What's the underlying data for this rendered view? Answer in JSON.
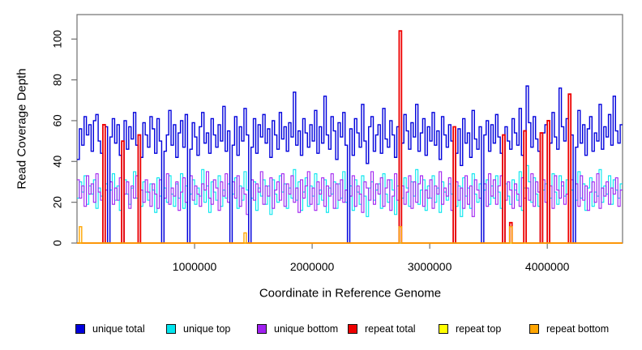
{
  "chart_data": {
    "type": "line",
    "line_style": "step",
    "title": "",
    "xlabel": "Coordinate in Reference Genome",
    "ylabel": "Read Coverage Depth",
    "xlim": [
      0,
      4640000
    ],
    "ylim": [
      0,
      112
    ],
    "grid": false,
    "legend_position": "bottom",
    "x_ticks": [
      {
        "value": 1000000,
        "label": "1000000"
      },
      {
        "value": 2000000,
        "label": "2000000"
      },
      {
        "value": 3000000,
        "label": "3000000"
      },
      {
        "value": 4000000,
        "label": "4000000"
      }
    ],
    "y_ticks": [
      {
        "value": 0,
        "label": "0"
      },
      {
        "value": 20,
        "label": "20"
      },
      {
        "value": 40,
        "label": "40"
      },
      {
        "value": 60,
        "label": "60"
      },
      {
        "value": 80,
        "label": "80"
      },
      {
        "value": 100,
        "label": "100"
      }
    ],
    "bin_size": 20000,
    "n_bins": 232,
    "axis_color": "#707070",
    "draw_order": [
      1,
      2,
      0,
      3,
      4,
      5
    ],
    "series": [
      {
        "name": "unique total",
        "color": "#0000DC",
        "kind": "full",
        "values": [
          41,
          56,
          48,
          62,
          53,
          58,
          45,
          60,
          63,
          50,
          44,
          0,
          57,
          0,
          52,
          61,
          49,
          58,
          43,
          0,
          60,
          46,
          57,
          51,
          64,
          48,
          0,
          42,
          59,
          53,
          47,
          62,
          56,
          44,
          61,
          50,
          0,
          45,
          53,
          65,
          48,
          58,
          42,
          54,
          60,
          47,
          63,
          0,
          46,
          59,
          52,
          43,
          57,
          64,
          49,
          54,
          44,
          61,
          53,
          47,
          58,
          50,
          67,
          45,
          55,
          0,
          48,
          62,
          43,
          57,
          50,
          66,
          53,
          0,
          47,
          61,
          44,
          58,
          52,
          63,
          49,
          56,
          42,
          60,
          53,
          46,
          64,
          51,
          57,
          45,
          59,
          52,
          74,
          48,
          55,
          43,
          61,
          54,
          47,
          58,
          50,
          65,
          44,
          57,
          49,
          72,
          53,
          46,
          62,
          55,
          41,
          59,
          52,
          64,
          48,
          0,
          56,
          43,
          61,
          54,
          47,
          68,
          50,
          39,
          57,
          62,
          45,
          53,
          58,
          44,
          66,
          51,
          47,
          60,
          53,
          42,
          57,
          0,
          49,
          63,
          55,
          46,
          59,
          52,
          68,
          45,
          54,
          61,
          43,
          57,
          50,
          64,
          48,
          55,
          41,
          62,
          53,
          47,
          58,
          50,
          0,
          44,
          56,
          38,
          61,
          49,
          54,
          42,
          65,
          51,
          46,
          57,
          0,
          53,
          60,
          45,
          58,
          49,
          63,
          52,
          44,
          0,
          57,
          50,
          46,
          61,
          54,
          48,
          66,
          43,
          55,
          77,
          59,
          47,
          62,
          51,
          45,
          0,
          54,
          58,
          0,
          49,
          64,
          52,
          46,
          76,
          57,
          50,
          61,
          0,
          53,
          0,
          47,
          65,
          49,
          58,
          43,
          56,
          62,
          45,
          54,
          50,
          68,
          46,
          57,
          52,
          63,
          48,
          72,
          55,
          49,
          58
        ]
      },
      {
        "name": "unique top",
        "color": "#00E5EE",
        "kind": "full",
        "values": [
          22,
          30,
          25,
          33,
          19,
          28,
          24,
          31,
          17,
          27,
          23,
          0,
          29,
          0,
          26,
          34,
          21,
          28,
          16,
          0,
          31,
          24,
          19,
          27,
          35,
          22,
          0,
          18,
          30,
          25,
          21,
          29,
          26,
          15,
          32,
          23,
          0,
          27,
          20,
          33,
          24,
          18,
          29,
          22,
          34,
          17,
          28,
          0,
          24,
          31,
          19,
          27,
          23,
          36,
          20,
          28,
          15,
          30,
          25,
          21,
          33,
          18,
          26,
          22,
          29,
          0,
          24,
          32,
          17,
          28,
          21,
          35,
          26,
          0,
          22,
          30,
          16,
          27,
          23,
          31,
          19,
          28,
          14,
          31,
          24,
          20,
          33,
          25,
          29,
          17,
          27,
          22,
          36,
          21,
          30,
          16,
          25,
          32,
          18,
          28,
          23,
          34,
          19,
          26,
          21,
          31,
          15,
          27,
          24,
          30,
          17,
          29,
          22,
          35,
          20,
          0,
          28,
          16,
          31,
          25,
          19,
          33,
          23,
          13,
          27,
          30,
          21,
          26,
          29,
          17,
          34,
          24,
          20,
          31,
          26,
          14,
          28,
          0,
          22,
          32,
          27,
          18,
          30,
          23,
          36,
          19,
          26,
          31,
          16,
          28,
          22,
          33,
          20,
          27,
          15,
          30,
          25,
          21,
          29,
          24,
          0,
          18,
          28,
          13,
          32,
          23,
          27,
          17,
          34,
          24,
          20,
          29,
          0,
          26,
          31,
          19,
          28,
          22,
          33,
          25,
          17,
          0,
          29,
          23,
          19,
          31,
          26,
          21,
          35,
          16,
          27,
          38,
          30,
          20,
          32,
          24,
          18,
          0,
          26,
          29,
          0,
          22,
          34,
          25,
          19,
          33,
          28,
          23,
          31,
          0,
          26,
          0,
          21,
          35,
          22,
          29,
          16,
          27,
          32,
          18,
          25,
          23,
          36,
          20,
          28,
          24,
          33,
          19,
          31,
          26,
          22,
          29
        ]
      },
      {
        "name": "unique bottom",
        "color": "#A020F0",
        "kind": "full",
        "values": [
          31,
          22,
          28,
          18,
          33,
          24,
          29,
          20,
          34,
          25,
          21,
          0,
          26,
          0,
          30,
          19,
          27,
          21,
          32,
          0,
          24,
          30,
          17,
          28,
          22,
          33,
          0,
          26,
          20,
          31,
          25,
          18,
          29,
          24,
          17,
          31,
          0,
          22,
          34,
          19,
          27,
          23,
          30,
          16,
          25,
          32,
          20,
          0,
          33,
          21,
          28,
          24,
          18,
          29,
          26,
          35,
          22,
          19,
          31,
          27,
          16,
          30,
          23,
          34,
          20,
          0,
          30,
          22,
          33,
          18,
          27,
          24,
          14,
          0,
          31,
          21,
          29,
          25,
          35,
          19,
          28,
          23,
          32,
          17,
          26,
          30,
          21,
          34,
          18,
          29,
          24,
          33,
          20,
          27,
          15,
          31,
          22,
          28,
          35,
          19,
          27,
          16,
          30,
          24,
          32,
          18,
          28,
          23,
          34,
          17,
          29,
          21,
          31,
          20,
          26,
          0,
          23,
          33,
          18,
          28,
          24,
          15,
          30,
          27,
          21,
          35,
          19,
          29,
          24,
          32,
          18,
          27,
          31,
          16,
          23,
          34,
          21,
          0,
          28,
          19,
          25,
          33,
          17,
          30,
          20,
          29,
          33,
          18,
          26,
          22,
          31,
          17,
          28,
          24,
          35,
          19,
          27,
          23,
          32,
          16,
          0,
          30,
          21,
          27,
          17,
          33,
          19,
          28,
          13,
          31,
          26,
          22,
          0,
          29,
          18,
          34,
          23,
          31,
          19,
          28,
          33,
          0,
          21,
          30,
          26,
          17,
          29,
          24,
          18,
          32,
          22,
          27,
          21,
          34,
          18,
          30,
          25,
          0,
          31,
          20,
          0,
          28,
          17,
          33,
          26,
          22,
          30,
          19,
          24,
          0,
          31,
          0,
          29,
          18,
          33,
          21,
          28,
          16,
          25,
          30,
          20,
          34,
          17,
          27,
          23,
          30,
          19,
          27,
          24,
          32,
          18,
          26
        ]
      },
      {
        "name": "repeat total",
        "color": "#EE0000",
        "kind": "spikes",
        "base": 0,
        "spikes": [
          [
            11,
            58
          ],
          [
            19,
            50
          ],
          [
            26,
            53
          ],
          [
            137,
            104
          ],
          [
            160,
            57
          ],
          [
            181,
            53
          ],
          [
            184,
            10
          ],
          [
            190,
            55
          ],
          [
            197,
            54
          ],
          [
            200,
            60
          ],
          [
            209,
            73
          ]
        ]
      },
      {
        "name": "repeat top",
        "color": "#FFFF00",
        "kind": "spikes",
        "base": 0,
        "spikes": []
      },
      {
        "name": "repeat bottom",
        "color": "#FFA500",
        "kind": "spikes",
        "base": 0,
        "spikes": [
          [
            1,
            8
          ],
          [
            71,
            5
          ],
          [
            137,
            8
          ],
          [
            184,
            8
          ]
        ]
      }
    ]
  }
}
